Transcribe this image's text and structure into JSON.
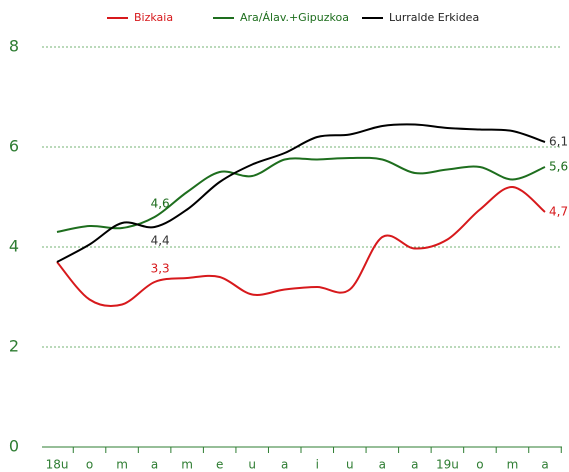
{
  "chart_data": {
    "type": "line",
    "categories": [
      "18u",
      "o",
      "m",
      "a",
      "m",
      "e",
      "u",
      "a",
      "i",
      "u",
      "a",
      "a",
      "19u",
      "o",
      "m",
      "a"
    ],
    "series": [
      {
        "name": "Bizkaia",
        "color": "#d7191c",
        "values": [
          3.7,
          2.95,
          2.85,
          3.3,
          3.38,
          3.4,
          3.05,
          3.15,
          3.2,
          3.15,
          4.2,
          3.97,
          4.15,
          4.75,
          5.2,
          4.7
        ],
        "value_labels": [
          null,
          null,
          null,
          "3,3",
          null,
          null,
          null,
          null,
          null,
          null,
          null,
          null,
          null,
          null,
          null,
          "4,7"
        ]
      },
      {
        "name": "Ara/Álav.+Gipuzkoa",
        "color": "#1e6e1e",
        "values": [
          4.3,
          4.42,
          4.38,
          4.6,
          5.1,
          5.5,
          5.42,
          5.75,
          5.75,
          5.78,
          5.75,
          5.48,
          5.55,
          5.6,
          5.35,
          5.6
        ],
        "value_labels": [
          null,
          null,
          null,
          "4,6",
          null,
          null,
          null,
          null,
          null,
          null,
          null,
          null,
          null,
          null,
          null,
          "5,6"
        ]
      },
      {
        "name": "Lurralde Erkidea",
        "color": "#000000",
        "values": [
          3.7,
          4.05,
          4.48,
          4.4,
          4.75,
          5.3,
          5.65,
          5.88,
          6.2,
          6.25,
          6.42,
          6.45,
          6.38,
          6.35,
          6.32,
          6.1
        ],
        "value_labels": [
          null,
          null,
          null,
          "4,4",
          null,
          null,
          null,
          null,
          null,
          null,
          null,
          null,
          null,
          null,
          null,
          "6,1"
        ]
      }
    ],
    "ylim": [
      0,
      8
    ],
    "yticks": [
      0,
      2,
      4,
      6,
      8
    ],
    "grid": true,
    "legend": "top"
  }
}
